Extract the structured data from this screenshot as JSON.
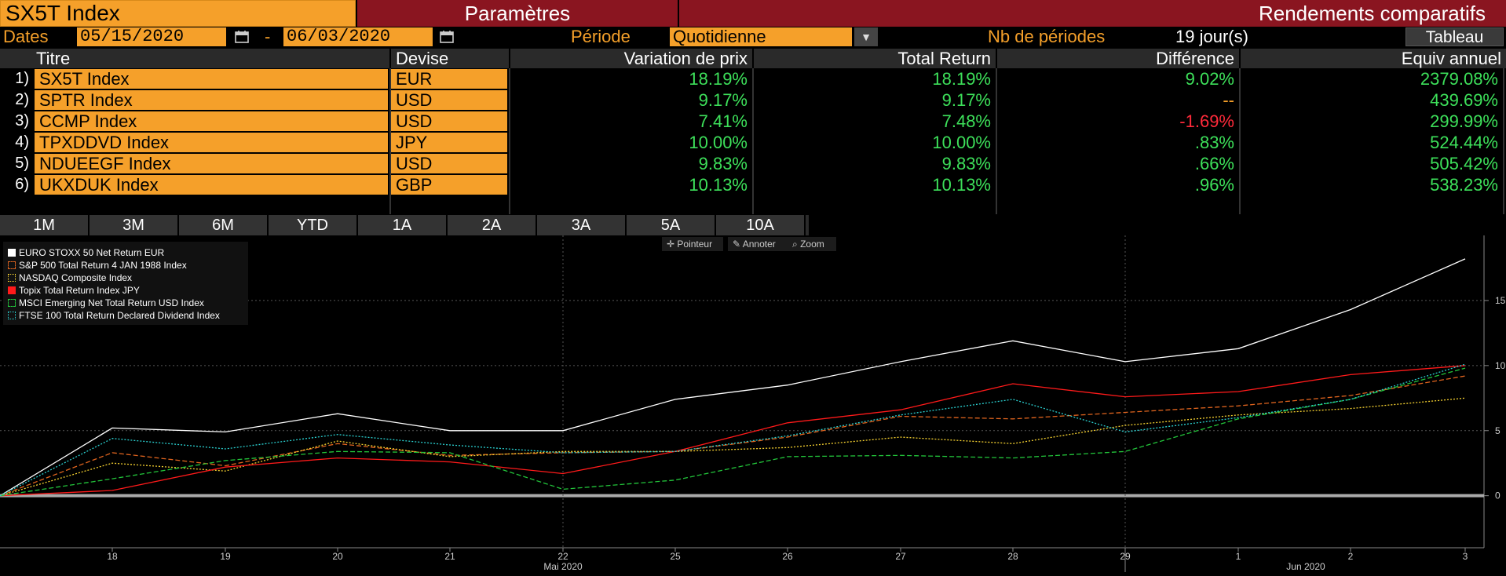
{
  "header": {
    "ticker": "SX5T Index",
    "params_label": "Paramètres",
    "title": "Rendements comparatifs"
  },
  "controls": {
    "dates_label": "Dates",
    "date_from": "05/15/2020",
    "dash": "-",
    "date_to": "06/03/2020",
    "period_label": "Période",
    "period_value": "Quotidienne",
    "nb_label": "Nb de périodes",
    "nb_value": "19 jour(s)",
    "tableau_label": "Tableau"
  },
  "table": {
    "headers": [
      "Titre",
      "Devise",
      "Variation de prix",
      "Total Return",
      "Différence",
      "Equiv annuel"
    ],
    "rows": [
      {
        "num": "1)",
        "title": "SX5T Index",
        "currency": "EUR",
        "price": "18.19%",
        "total": "18.19%",
        "diff": "9.02%",
        "annual": "2379.08%"
      },
      {
        "num": "2)",
        "title": "SPTR Index",
        "currency": "USD",
        "price": "9.17%",
        "total": "9.17%",
        "diff": "--",
        "annual": "439.69%"
      },
      {
        "num": "3)",
        "title": "CCMP Index",
        "currency": "USD",
        "price": "7.41%",
        "total": "7.48%",
        "diff": "-1.69%",
        "annual": "299.99%"
      },
      {
        "num": "4)",
        "title": "TPXDDVD Index",
        "currency": "JPY",
        "price": "10.00%",
        "total": "10.00%",
        "diff": ".83%",
        "annual": "524.44%"
      },
      {
        "num": "5)",
        "title": "NDUEEGF Index",
        "currency": "USD",
        "price": "9.83%",
        "total": "9.83%",
        "diff": ".66%",
        "annual": "505.42%"
      },
      {
        "num": "6)",
        "title": "UKXDUK Index",
        "currency": "GBP",
        "price": "10.13%",
        "total": "10.13%",
        "diff": ".96%",
        "annual": "538.23%"
      }
    ]
  },
  "periods": [
    "1M",
    "3M",
    "6M",
    "YTD",
    "1A",
    "2A",
    "3A",
    "5A",
    "10A"
  ],
  "chart_tools": [
    "Pointeur",
    "Annoter",
    "Zoom"
  ],
  "colors": {
    "amber": "#f5a02a",
    "maroon": "#8a1520",
    "positive": "#3de05a",
    "negative": "#ff2a3a"
  },
  "chart_data": {
    "type": "line",
    "x": [
      "15",
      "18",
      "19",
      "20",
      "21",
      "22",
      "25",
      "26",
      "27",
      "28",
      "29",
      "1",
      "2",
      "3"
    ],
    "x_tick_labels": [
      "18",
      "19",
      "20",
      "21",
      "22",
      "25",
      "26",
      "27",
      "28",
      "29",
      "1",
      "2",
      "3"
    ],
    "x_month_labels": [
      "Mai 2020",
      "Jun 2020"
    ],
    "ylim": [
      -4,
      20
    ],
    "y_ticks": [
      0,
      5,
      10,
      15
    ],
    "legend_position": "top-left",
    "grid": true,
    "series": [
      {
        "name": "EURO STOXX 50 Net Return EUR",
        "color": "#ffffff",
        "dash": "solid",
        "values": [
          0,
          5.2,
          4.9,
          6.3,
          5.0,
          5.0,
          7.4,
          8.5,
          10.3,
          11.9,
          10.3,
          11.3,
          14.3,
          18.2
        ]
      },
      {
        "name": "S&P 500 Total Return 4 JAN 1988 Index",
        "color": "#e0641e",
        "dash": "dashed",
        "values": [
          0,
          3.3,
          2.3,
          4.0,
          3.1,
          3.3,
          3.4,
          4.5,
          6.1,
          5.9,
          6.4,
          6.9,
          7.7,
          9.2
        ]
      },
      {
        "name": "NASDAQ Composite Index",
        "color": "#f5d130",
        "dash": "dotted",
        "values": [
          0,
          2.5,
          1.9,
          4.2,
          3.0,
          3.4,
          3.4,
          3.7,
          4.5,
          4.0,
          5.4,
          6.2,
          6.7,
          7.5
        ]
      },
      {
        "name": "Topix Total Return Index JPY",
        "color": "#ff1a1a",
        "dash": "solid",
        "values": [
          0,
          0.4,
          2.2,
          2.9,
          2.6,
          1.7,
          3.4,
          5.6,
          6.6,
          8.6,
          7.6,
          8.0,
          9.3,
          10.0
        ]
      },
      {
        "name": "MSCI Emerging Net Total Return USD Index",
        "color": "#22c43a",
        "dash": "dashed",
        "values": [
          0,
          1.3,
          2.7,
          3.4,
          3.3,
          0.5,
          1.2,
          3.0,
          3.1,
          2.9,
          3.4,
          5.9,
          7.4,
          9.8
        ]
      },
      {
        "name": "FTSE 100 Total Return Declared Dividend Index",
        "color": "#2ad0d0",
        "dash": "dotted",
        "values": [
          0,
          4.4,
          3.6,
          4.7,
          3.9,
          3.3,
          3.4,
          4.6,
          6.2,
          7.4,
          4.9,
          6.0,
          7.4,
          10.1
        ]
      }
    ]
  }
}
